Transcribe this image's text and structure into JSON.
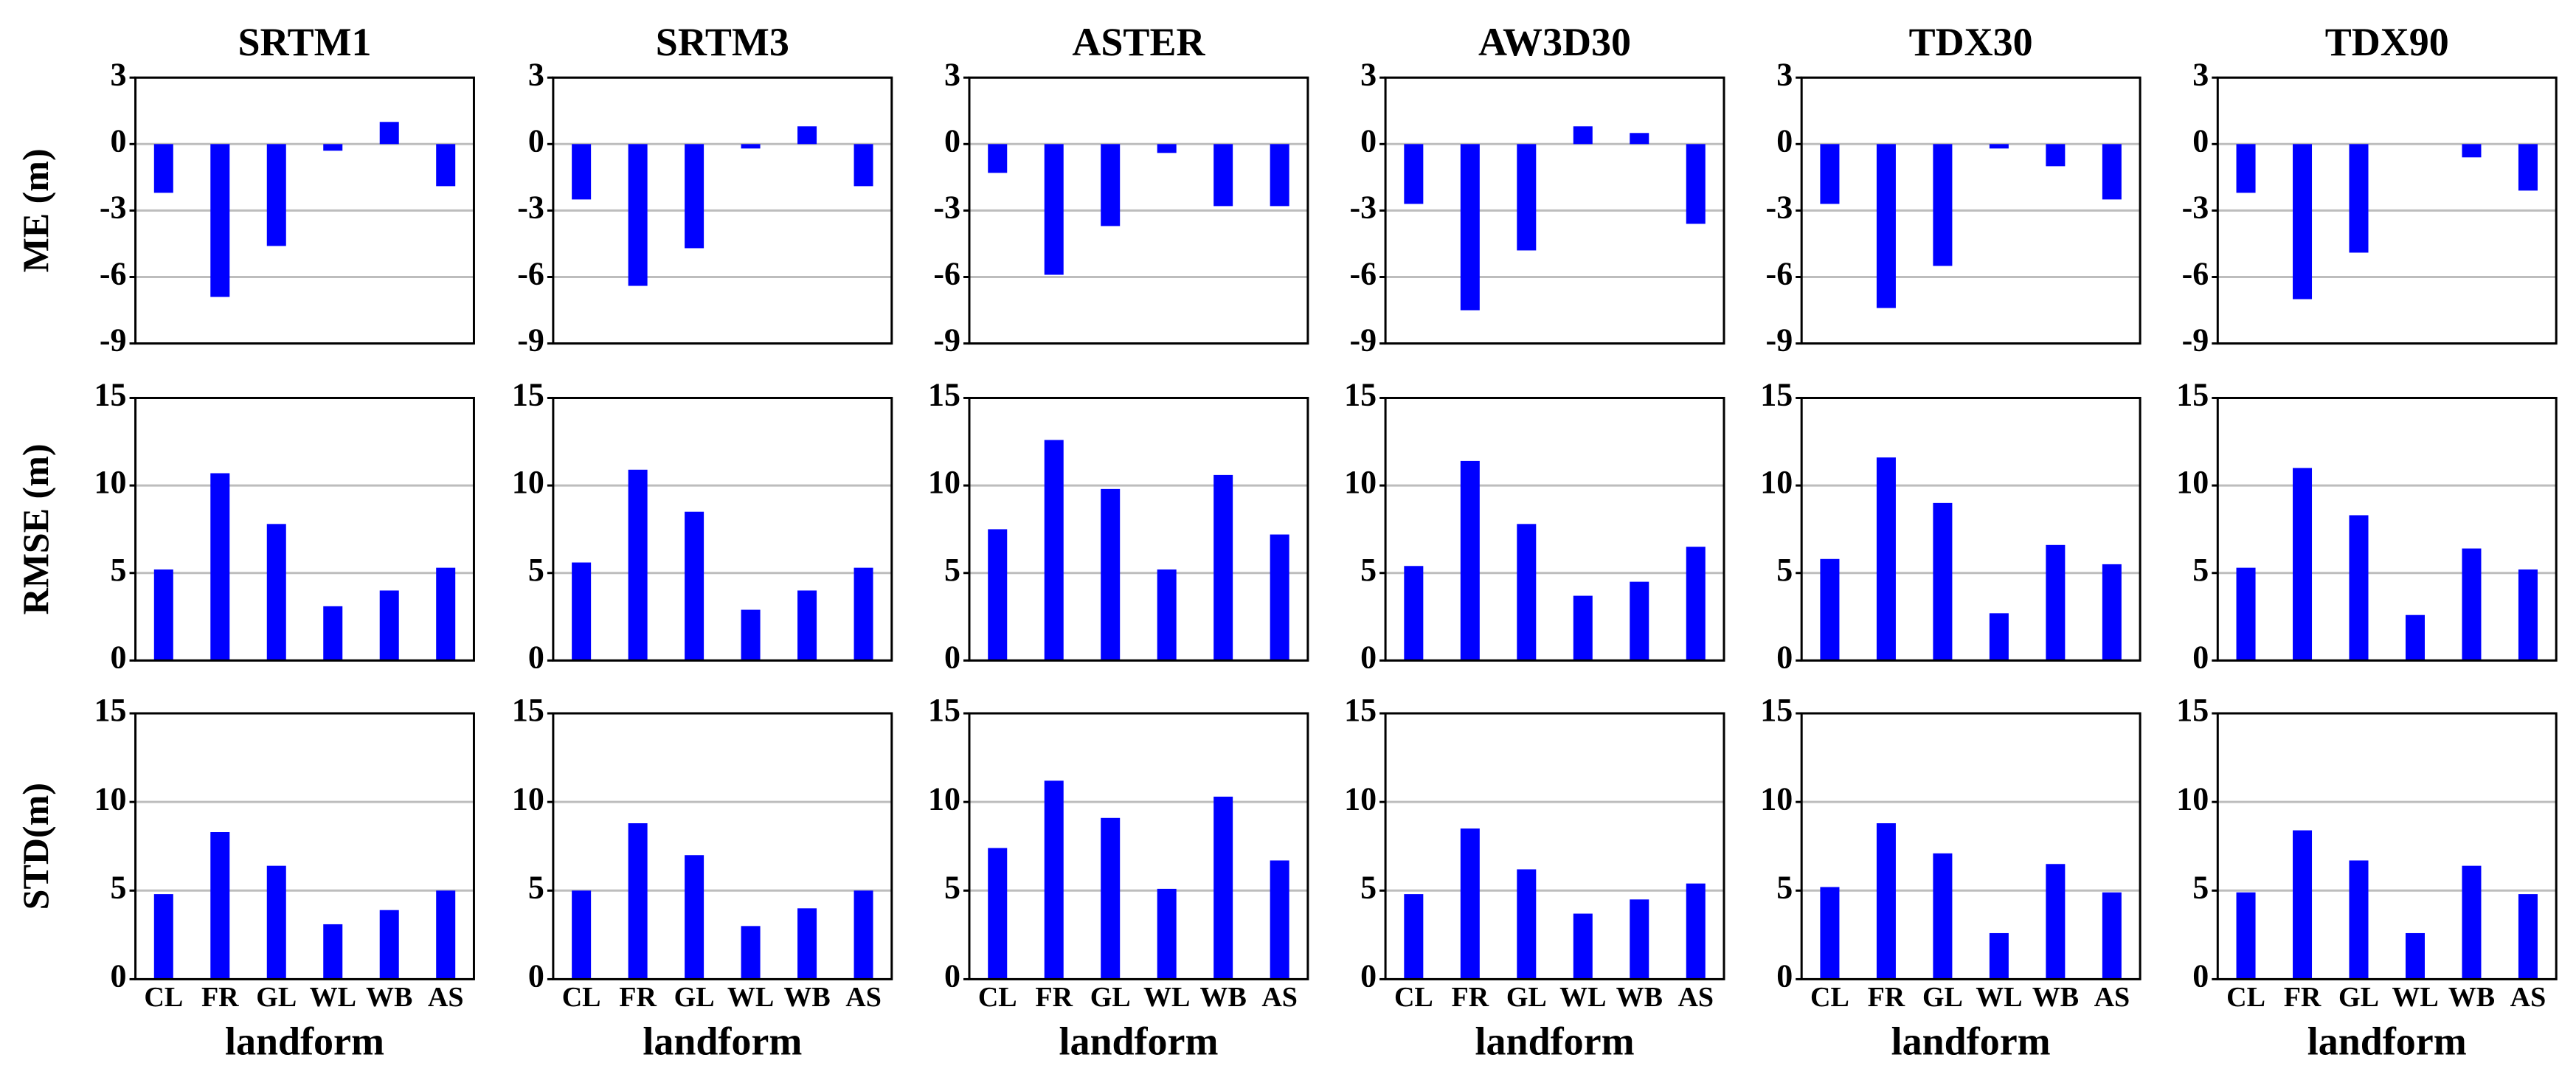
{
  "chart_data": [
    {
      "type": "bar",
      "title": "SRTM1",
      "ylabel": "ME (m)",
      "values": [
        -2.2,
        -6.9,
        -4.6,
        -0.3,
        1.0,
        -1.9
      ],
      "color": "#0000ff",
      "ylim": [
        -9,
        3
      ],
      "yticks": [
        -9,
        -6,
        -3,
        0,
        3
      ],
      "grid": true
    },
    {
      "type": "bar",
      "title": "SRTM3",
      "values": [
        -2.5,
        -6.4,
        -4.7,
        -0.2,
        0.8,
        -1.9
      ],
      "color": "#0000ff",
      "ylim": [
        -9,
        3
      ],
      "yticks": [
        -9,
        -6,
        -3,
        0,
        3
      ],
      "grid": true
    },
    {
      "type": "bar",
      "title": "ASTER",
      "values": [
        -1.3,
        -5.9,
        -3.7,
        -0.4,
        -2.8,
        -2.8
      ],
      "color": "#0000ff",
      "ylim": [
        -9,
        3
      ],
      "yticks": [
        -9,
        -6,
        -3,
        0,
        3
      ],
      "grid": true
    },
    {
      "type": "bar",
      "title": "AW3D30",
      "values": [
        -2.7,
        -7.5,
        -4.8,
        0.8,
        0.5,
        -3.6
      ],
      "color": "#0000ff",
      "ylim": [
        -9,
        3
      ],
      "yticks": [
        -9,
        -6,
        -3,
        0,
        3
      ],
      "grid": true
    },
    {
      "type": "bar",
      "title": "TDX30",
      "values": [
        -2.7,
        -7.4,
        -5.5,
        -0.2,
        -1.0,
        -2.5
      ],
      "color": "#0000ff",
      "ylim": [
        -9,
        3
      ],
      "yticks": [
        -9,
        -6,
        -3,
        0,
        3
      ],
      "grid": true
    },
    {
      "type": "bar",
      "title": "TDX90",
      "values": [
        -2.2,
        -7.0,
        -4.9,
        0,
        -0.6,
        -2.1
      ],
      "color": "#0000ff",
      "ylim": [
        -9,
        3
      ],
      "yticks": [
        -9,
        -6,
        -3,
        0,
        3
      ],
      "grid": true
    },
    {
      "type": "bar",
      "ylabel": "RMSE (m)",
      "values": [
        5.2,
        10.7,
        7.8,
        3.1,
        4.0,
        5.3
      ],
      "color": "#0000ff",
      "ylim": [
        0,
        15
      ],
      "yticks": [
        0,
        5,
        10,
        15
      ],
      "grid": true
    },
    {
      "type": "bar",
      "values": [
        5.6,
        10.9,
        8.5,
        2.9,
        4.0,
        5.3
      ],
      "color": "#0000ff",
      "ylim": [
        0,
        15
      ],
      "yticks": [
        0,
        5,
        10,
        15
      ],
      "grid": true
    },
    {
      "type": "bar",
      "values": [
        7.5,
        12.6,
        9.8,
        5.2,
        10.6,
        7.2
      ],
      "color": "#0000ff",
      "ylim": [
        0,
        15
      ],
      "yticks": [
        0,
        5,
        10,
        15
      ],
      "grid": true
    },
    {
      "type": "bar",
      "values": [
        5.4,
        11.4,
        7.8,
        3.7,
        4.5,
        6.5
      ],
      "color": "#0000ff",
      "ylim": [
        0,
        15
      ],
      "yticks": [
        0,
        5,
        10,
        15
      ],
      "grid": true
    },
    {
      "type": "bar",
      "values": [
        5.8,
        11.6,
        9.0,
        2.7,
        6.6,
        5.5
      ],
      "color": "#0000ff",
      "ylim": [
        0,
        15
      ],
      "yticks": [
        0,
        5,
        10,
        15
      ],
      "grid": true
    },
    {
      "type": "bar",
      "values": [
        5.3,
        11.0,
        8.3,
        2.6,
        6.4,
        5.2
      ],
      "color": "#0000ff",
      "ylim": [
        0,
        15
      ],
      "yticks": [
        0,
        5,
        10,
        15
      ],
      "grid": true
    },
    {
      "type": "bar",
      "ylabel": "STD(m)",
      "xlabel": "landform",
      "categories": [
        "CL",
        "FR",
        "GL",
        "WL",
        "WB",
        "AS"
      ],
      "values": [
        4.8,
        8.3,
        6.4,
        3.1,
        3.9,
        5.0
      ],
      "color": "#0000ff",
      "ylim": [
        0,
        15
      ],
      "yticks": [
        0,
        5,
        10,
        15
      ],
      "grid": true
    },
    {
      "type": "bar",
      "xlabel": "landform",
      "categories": [
        "CL",
        "FR",
        "GL",
        "WL",
        "WB",
        "AS"
      ],
      "values": [
        5.0,
        8.8,
        7.0,
        3.0,
        4.0,
        5.0
      ],
      "color": "#0000ff",
      "ylim": [
        0,
        15
      ],
      "yticks": [
        0,
        5,
        10,
        15
      ],
      "grid": true
    },
    {
      "type": "bar",
      "xlabel": "landform",
      "categories": [
        "CL",
        "FR",
        "GL",
        "WL",
        "WB",
        "AS"
      ],
      "values": [
        7.4,
        11.2,
        9.1,
        5.1,
        10.3,
        6.7
      ],
      "color": "#0000ff",
      "ylim": [
        0,
        15
      ],
      "yticks": [
        0,
        5,
        10,
        15
      ],
      "grid": true
    },
    {
      "type": "bar",
      "xlabel": "landform",
      "categories": [
        "CL",
        "FR",
        "GL",
        "WL",
        "WB",
        "AS"
      ],
      "values": [
        4.8,
        8.5,
        6.2,
        3.7,
        4.5,
        5.4
      ],
      "color": "#0000ff",
      "ylim": [
        0,
        15
      ],
      "yticks": [
        0,
        5,
        10,
        15
      ],
      "grid": true
    },
    {
      "type": "bar",
      "xlabel": "landform",
      "categories": [
        "CL",
        "FR",
        "GL",
        "WL",
        "WB",
        "AS"
      ],
      "values": [
        5.2,
        8.8,
        7.1,
        2.6,
        6.5,
        4.9
      ],
      "color": "#0000ff",
      "ylim": [
        0,
        15
      ],
      "yticks": [
        0,
        5,
        10,
        15
      ],
      "grid": true
    },
    {
      "type": "bar",
      "xlabel": "landform",
      "categories": [
        "CL",
        "FR",
        "GL",
        "WL",
        "WB",
        "AS"
      ],
      "values": [
        4.9,
        8.4,
        6.7,
        2.6,
        6.4,
        4.8
      ],
      "color": "#0000ff",
      "ylim": [
        0,
        15
      ],
      "yticks": [
        0,
        5,
        10,
        15
      ],
      "grid": true
    }
  ]
}
